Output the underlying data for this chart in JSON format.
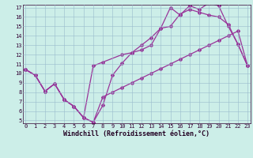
{
  "xlabel": "Windchill (Refroidissement éolien,°C)",
  "bg_color": "#cceee8",
  "line_color": "#993399",
  "grid_color": "#99bbcc",
  "xlim_min": 0,
  "xlim_max": 23,
  "ylim_min": 5,
  "ylim_max": 17,
  "xticks": [
    0,
    1,
    2,
    3,
    4,
    5,
    6,
    7,
    8,
    9,
    10,
    11,
    12,
    13,
    14,
    15,
    16,
    17,
    18,
    19,
    20,
    21,
    22,
    23
  ],
  "yticks": [
    5,
    6,
    7,
    8,
    9,
    10,
    11,
    12,
    13,
    14,
    15,
    16,
    17
  ],
  "line1_x": [
    0,
    1,
    2,
    3,
    4,
    5,
    6,
    7,
    8,
    9,
    10,
    11,
    12,
    13,
    14,
    15,
    16,
    17,
    18,
    19,
    20,
    21,
    22,
    23
  ],
  "line1_y": [
    10.4,
    9.8,
    8.1,
    8.9,
    7.2,
    6.5,
    5.3,
    4.8,
    6.6,
    9.8,
    11.1,
    12.2,
    13.0,
    13.8,
    14.8,
    15.0,
    16.3,
    16.8,
    16.5,
    16.2,
    16.0,
    15.2,
    13.1,
    10.8
  ],
  "line2_x": [
    0,
    1,
    2,
    3,
    4,
    5,
    6,
    7,
    8,
    10,
    11,
    12,
    13,
    14,
    15,
    16,
    17,
    18,
    19,
    20,
    21,
    22,
    23
  ],
  "line2_y": [
    10.4,
    9.8,
    8.1,
    8.9,
    7.2,
    6.5,
    5.3,
    10.8,
    11.2,
    12.0,
    12.2,
    12.5,
    13.0,
    14.8,
    17.0,
    16.2,
    17.2,
    16.8,
    17.5,
    17.2,
    15.0,
    13.1,
    10.8
  ],
  "line3_x": [
    0,
    1,
    2,
    3,
    4,
    5,
    6,
    7,
    8,
    9,
    10,
    11,
    12,
    13,
    14,
    15,
    16,
    17,
    18,
    19,
    20,
    21,
    22,
    23
  ],
  "line3_y": [
    10.4,
    9.8,
    8.1,
    8.9,
    7.2,
    6.5,
    5.3,
    4.8,
    7.5,
    8.0,
    8.5,
    9.0,
    9.5,
    10.0,
    10.5,
    11.0,
    11.5,
    12.0,
    12.5,
    13.0,
    13.5,
    14.0,
    14.5,
    10.8
  ],
  "tick_fontsize": 5.0,
  "label_fontsize": 6.0,
  "linewidth": 0.9,
  "markersize": 2.0
}
